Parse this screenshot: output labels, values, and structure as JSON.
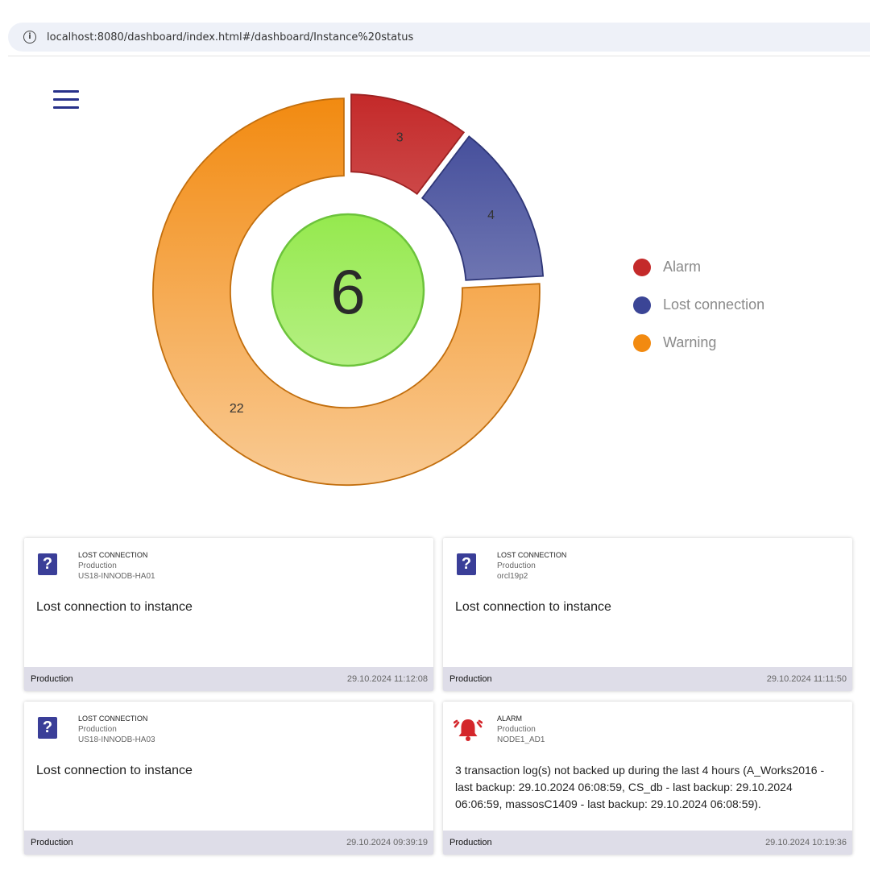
{
  "browser": {
    "url": "localhost:8080/dashboard/index.html#/dashboard/Instance%20status"
  },
  "menu": {
    "icon": "hamburger-menu-icon"
  },
  "center": {
    "value": "6",
    "color": "#95e94e"
  },
  "chart_data": {
    "type": "pie",
    "categories": [
      "Alarm",
      "Lost connection",
      "Warning"
    ],
    "values": [
      3,
      4,
      22
    ],
    "colors": [
      "#c42a2a",
      "#3b4596",
      "#f28a10"
    ],
    "legend": "right"
  },
  "legend": [
    {
      "label": "Alarm",
      "color": "#c42a2a"
    },
    {
      "label": "Lost connection",
      "color": "#3b4596"
    },
    {
      "label": "Warning",
      "color": "#f28a10"
    }
  ],
  "cards": [
    {
      "icon": "question-icon",
      "type": "LOST CONNECTION",
      "env": "Production",
      "host": "US18-INNODB-HA01",
      "message": "Lost connection to instance",
      "footer_env": "Production",
      "timestamp": "29.10.2024 11:12:08"
    },
    {
      "icon": "question-icon",
      "type": "LOST CONNECTION",
      "env": "Production",
      "host": "orcl19p2",
      "message": "Lost connection to instance",
      "footer_env": "Production",
      "timestamp": "29.10.2024 11:11:50"
    },
    {
      "icon": "question-icon",
      "type": "LOST CONNECTION",
      "env": "Production",
      "host": "US18-INNODB-HA03",
      "message": "Lost connection to instance",
      "footer_env": "Production",
      "timestamp": "29.10.2024 09:39:19"
    },
    {
      "icon": "alarm-bell-icon",
      "type": "ALARM",
      "env": "Production",
      "host": "NODE1_AD1",
      "message": "3 transaction log(s) not backed up during the last 4 hours (A_Works2016 - last backup: 29.10.2024 06:08:59, CS_db - last backup: 29.10.2024 06:06:59, massosC1409 - last backup: 29.10.2024 06:08:59).",
      "footer_env": "Production",
      "timestamp": "29.10.2024 10:19:36"
    }
  ]
}
